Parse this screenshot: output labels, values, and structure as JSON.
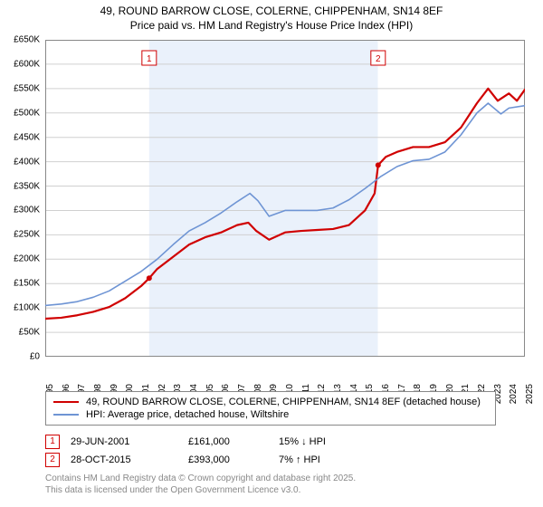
{
  "title_line1": "49, ROUND BARROW CLOSE, COLERNE, CHIPPENHAM, SN14 8EF",
  "title_line2": "Price paid vs. HM Land Registry's House Price Index (HPI)",
  "chart": {
    "type": "line",
    "background_color": "#ffffff",
    "plot_border_color": "#888888",
    "grid_color": "#d0d0d0",
    "highlight_band_color": "#eaf1fb",
    "highlight_bands": [
      {
        "x_start": 2001.5,
        "x_end": 2015.8
      }
    ],
    "x": {
      "min": 1995,
      "max": 2025,
      "ticks": [
        1995,
        1996,
        1997,
        1998,
        1999,
        2000,
        2001,
        2002,
        2003,
        2004,
        2005,
        2006,
        2007,
        2008,
        2009,
        2010,
        2011,
        2012,
        2013,
        2014,
        2015,
        2016,
        2017,
        2018,
        2019,
        2020,
        2021,
        2022,
        2023,
        2024,
        2025
      ]
    },
    "y": {
      "min": 0,
      "max": 650000,
      "tick_step": 50000,
      "tick_format": "£{v/1000}K",
      "ticks": [
        0,
        50000,
        100000,
        150000,
        200000,
        250000,
        300000,
        350000,
        400000,
        450000,
        500000,
        550000,
        600000,
        650000
      ]
    },
    "series": [
      {
        "name": "price_paid",
        "label": "49, ROUND BARROW CLOSE, COLERNE, CHIPPENHAM, SN14 8EF (detached house)",
        "color": "#d00000",
        "line_width": 2.2,
        "points": [
          [
            1995,
            78000
          ],
          [
            1996,
            80000
          ],
          [
            1997,
            85000
          ],
          [
            1998,
            92000
          ],
          [
            1999,
            102000
          ],
          [
            2000,
            120000
          ],
          [
            2001,
            145000
          ],
          [
            2001.5,
            161000
          ],
          [
            2002,
            180000
          ],
          [
            2003,
            205000
          ],
          [
            2004,
            230000
          ],
          [
            2005,
            245000
          ],
          [
            2006,
            255000
          ],
          [
            2007,
            270000
          ],
          [
            2007.7,
            275000
          ],
          [
            2008.2,
            258000
          ],
          [
            2009,
            240000
          ],
          [
            2010,
            255000
          ],
          [
            2011,
            258000
          ],
          [
            2012,
            260000
          ],
          [
            2013,
            262000
          ],
          [
            2014,
            270000
          ],
          [
            2015,
            300000
          ],
          [
            2015.6,
            335000
          ],
          [
            2015.82,
            393000
          ],
          [
            2016.3,
            410000
          ],
          [
            2017,
            420000
          ],
          [
            2018,
            430000
          ],
          [
            2019,
            430000
          ],
          [
            2020,
            440000
          ],
          [
            2021,
            470000
          ],
          [
            2022,
            520000
          ],
          [
            2022.7,
            550000
          ],
          [
            2023.3,
            525000
          ],
          [
            2024,
            540000
          ],
          [
            2024.5,
            525000
          ],
          [
            2025,
            548000
          ]
        ]
      },
      {
        "name": "hpi",
        "label": "HPI: Average price, detached house, Wiltshire",
        "color": "#6e94d4",
        "line_width": 1.6,
        "points": [
          [
            1995,
            105000
          ],
          [
            1996,
            108000
          ],
          [
            1997,
            113000
          ],
          [
            1998,
            122000
          ],
          [
            1999,
            135000
          ],
          [
            2000,
            155000
          ],
          [
            2001,
            175000
          ],
          [
            2002,
            200000
          ],
          [
            2003,
            230000
          ],
          [
            2004,
            258000
          ],
          [
            2005,
            275000
          ],
          [
            2006,
            295000
          ],
          [
            2007,
            318000
          ],
          [
            2007.8,
            335000
          ],
          [
            2008.3,
            320000
          ],
          [
            2009,
            288000
          ],
          [
            2010,
            300000
          ],
          [
            2011,
            300000
          ],
          [
            2012,
            300000
          ],
          [
            2013,
            305000
          ],
          [
            2014,
            322000
          ],
          [
            2015,
            345000
          ],
          [
            2016,
            370000
          ],
          [
            2017,
            390000
          ],
          [
            2018,
            402000
          ],
          [
            2019,
            405000
          ],
          [
            2020,
            420000
          ],
          [
            2021,
            455000
          ],
          [
            2022,
            500000
          ],
          [
            2022.7,
            520000
          ],
          [
            2023.5,
            498000
          ],
          [
            2024,
            510000
          ],
          [
            2025,
            515000
          ]
        ]
      }
    ],
    "markers": [
      {
        "id": "1",
        "x": 2001.5,
        "y": 161000,
        "box_color": "#d00000"
      },
      {
        "id": "2",
        "x": 2015.82,
        "y": 393000,
        "box_color": "#d00000"
      }
    ]
  },
  "legend": [
    {
      "color": "#d00000",
      "label": "49, ROUND BARROW CLOSE, COLERNE, CHIPPENHAM, SN14 8EF (detached house)"
    },
    {
      "color": "#6e94d4",
      "label": "HPI: Average price, detached house, Wiltshire"
    }
  ],
  "sales": [
    {
      "id": "1",
      "date": "29-JUN-2001",
      "price": "£161,000",
      "delta": "15% ↓ HPI"
    },
    {
      "id": "2",
      "date": "28-OCT-2015",
      "price": "£393,000",
      "delta": "7% ↑ HPI"
    }
  ],
  "attribution_line1": "Contains HM Land Registry data © Crown copyright and database right 2025.",
  "attribution_line2": "This data is licensed under the Open Government Licence v3.0."
}
